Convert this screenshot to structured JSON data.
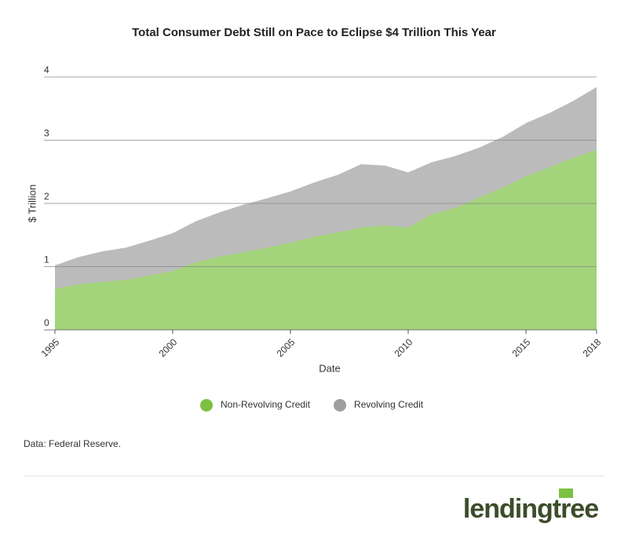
{
  "chart_data": {
    "type": "stacked-area",
    "title": "Total Consumer Debt Still on Pace to Eclipse $4 Trillion This Year",
    "x_label": "Date",
    "y_label": "$ Trillion",
    "x": [
      1995,
      1996,
      1997,
      1998,
      1999,
      2000,
      2001,
      2002,
      2003,
      2004,
      2005,
      2006,
      2007,
      2008,
      2009,
      2010,
      2011,
      2012,
      2013,
      2014,
      2015,
      2016,
      2017,
      2018
    ],
    "series": [
      {
        "name": "Non-Revolving Credit",
        "color": "#7cc142",
        "values": [
          0.65,
          0.72,
          0.76,
          0.79,
          0.86,
          0.93,
          1.07,
          1.16,
          1.23,
          1.3,
          1.38,
          1.47,
          1.54,
          1.62,
          1.65,
          1.62,
          1.83,
          1.93,
          2.09,
          2.25,
          2.43,
          2.57,
          2.72,
          2.85
        ]
      },
      {
        "name": "Revolving Credit",
        "color": "#9e9e9e",
        "values": [
          0.37,
          0.43,
          0.48,
          0.51,
          0.55,
          0.6,
          0.65,
          0.7,
          0.75,
          0.78,
          0.81,
          0.86,
          0.91,
          1.0,
          0.95,
          0.87,
          0.82,
          0.82,
          0.79,
          0.8,
          0.84,
          0.86,
          0.9,
          0.99
        ]
      }
    ],
    "xlim": [
      1995,
      2018
    ],
    "xticks": [
      1995,
      2000,
      2005,
      2010,
      2015,
      2018
    ],
    "ylim": [
      0,
      4
    ],
    "yticks": [
      0,
      1,
      2,
      3,
      4
    ],
    "grid": true,
    "source": "Data: Federal Reserve.",
    "logo": "lendingtree"
  }
}
